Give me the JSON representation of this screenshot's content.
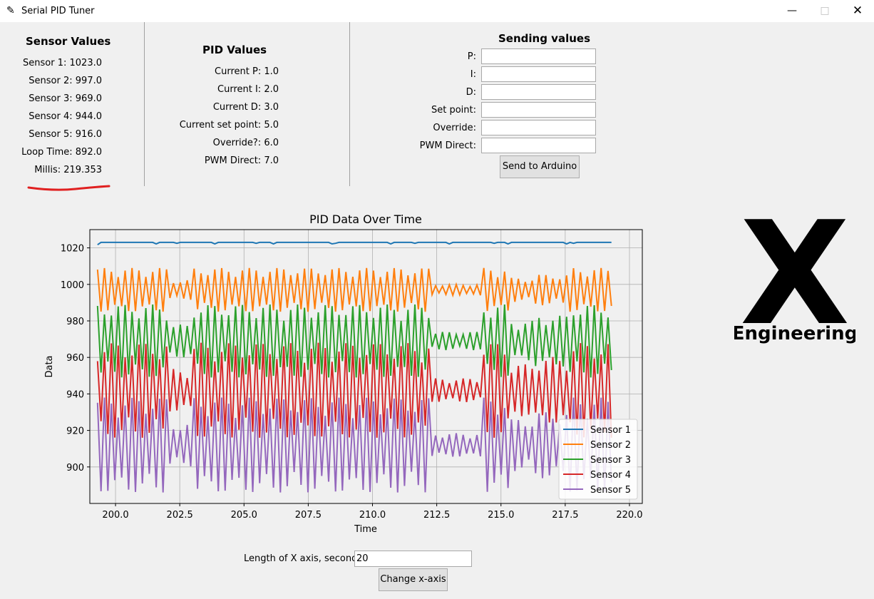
{
  "window": {
    "title": "Serial PID Tuner",
    "icon": "feather-icon"
  },
  "sensor_panel": {
    "heading": "Sensor Values",
    "rows": [
      "Sensor 1: 1023.0",
      "Sensor 2: 997.0",
      "Sensor 3: 969.0",
      "Sensor 4: 944.0",
      "Sensor 5: 916.0",
      "Loop Time: 892.0",
      "Millis: 219.353"
    ]
  },
  "pid_panel": {
    "heading": "PID Values",
    "rows": [
      "Current P: 1.0",
      "Current I: 2.0",
      "Current D: 3.0",
      "Current set point: 5.0",
      "Override?: 6.0",
      "PWM Direct: 7.0"
    ]
  },
  "send_panel": {
    "heading": "Sending values",
    "fields": [
      {
        "label": "P:",
        "value": ""
      },
      {
        "label": "I:",
        "value": ""
      },
      {
        "label": "D:",
        "value": ""
      },
      {
        "label": "Set point:",
        "value": ""
      },
      {
        "label": "Override:",
        "value": ""
      },
      {
        "label": "PWM Direct:",
        "value": ""
      }
    ],
    "button": "Send to Arduino"
  },
  "logo": {
    "letter": "X",
    "word": "Engineering"
  },
  "xaxis_control": {
    "label": "Length of X axis, seconds",
    "value": "20",
    "button": "Change x-axis"
  },
  "chart_data": {
    "type": "line",
    "title": "PID Data Over Time",
    "xlabel": "Time",
    "ylabel": "Data",
    "xlim": [
      199.0,
      220.5
    ],
    "ylim": [
      880,
      1030
    ],
    "xticks": [
      "200.0",
      "202.5",
      "205.0",
      "207.5",
      "210.0",
      "212.5",
      "215.0",
      "217.5",
      "220.0"
    ],
    "yticks": [
      "900",
      "920",
      "940",
      "960",
      "980",
      "1000",
      "1020"
    ],
    "grid": true,
    "legend_position": "lower-right",
    "series": [
      {
        "name": "Sensor 1",
        "color": "#1f77b4",
        "baseline": 1023,
        "amplitude": 0.6
      },
      {
        "name": "Sensor 2",
        "color": "#ff7f0e",
        "baseline": 997,
        "amplitude": 12
      },
      {
        "name": "Sensor 3",
        "color": "#2ca02c",
        "baseline": 969,
        "amplitude": 20
      },
      {
        "name": "Sensor 4",
        "color": "#d62728",
        "baseline": 942,
        "amplitude": 26
      },
      {
        "name": "Sensor 5",
        "color": "#9467bd",
        "baseline": 912,
        "amplitude": 26
      }
    ],
    "x_start": 199.3,
    "x_end": 219.3
  }
}
